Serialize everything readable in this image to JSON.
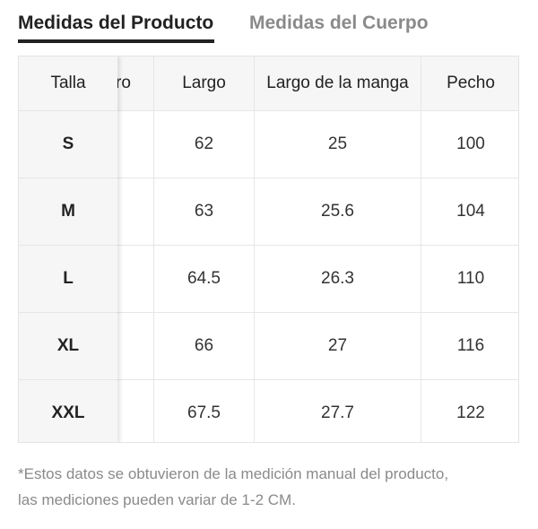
{
  "tabs": {
    "product": "Medidas del Producto",
    "body": "Medidas del Cuerpo"
  },
  "table": {
    "header": {
      "size": "Talla",
      "hidden_partial": "ro",
      "largo": "Largo",
      "manga": "Largo de la manga",
      "pecho": "Pecho"
    },
    "rows": [
      {
        "size": "S",
        "largo": "62",
        "manga": "25",
        "pecho": "100"
      },
      {
        "size": "M",
        "largo": "63",
        "manga": "25.6",
        "pecho": "104"
      },
      {
        "size": "L",
        "largo": "64.5",
        "manga": "26.3",
        "pecho": "110"
      },
      {
        "size": "XL",
        "largo": "66",
        "manga": "27",
        "pecho": "116"
      },
      {
        "size": "XXL",
        "largo": "67.5",
        "manga": "27.7",
        "pecho": "122"
      }
    ]
  },
  "note": {
    "line1": "*Estos datos se obtuvieron de la medición manual del producto,",
    "line2": "las mediciones pueden variar de 1-2 CM."
  }
}
